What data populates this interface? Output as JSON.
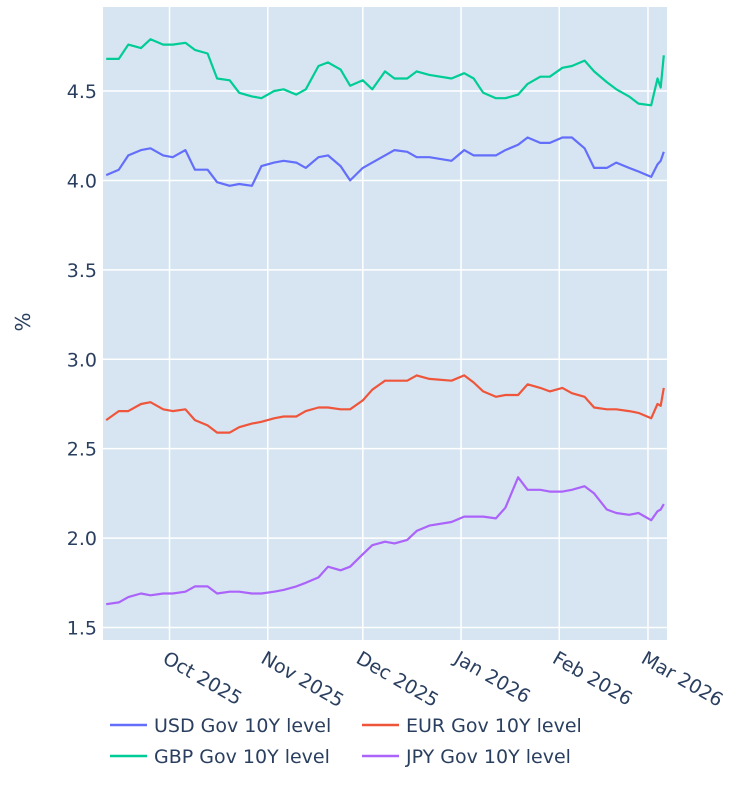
{
  "chart_data": {
    "type": "line",
    "title": "",
    "xlabel": "",
    "ylabel": "%",
    "xlim": [
      "2025-09-10",
      "2026-03-07"
    ],
    "ylim": [
      1.43,
      4.97
    ],
    "grid": true,
    "legend_position": "bottom",
    "plot_bgcolor": "#d6e5f1",
    "x_ticks": [
      {
        "date": "2025-10-01",
        "label": "Oct 2025"
      },
      {
        "date": "2025-11-01",
        "label": "Nov 2025"
      },
      {
        "date": "2025-12-01",
        "label": "Dec 2025"
      },
      {
        "date": "2026-01-01",
        "label": "Jan 2026"
      },
      {
        "date": "2026-02-01",
        "label": "Feb 2026"
      },
      {
        "date": "2026-03-01",
        "label": "Mar 2026"
      }
    ],
    "y_ticks": [
      1.5,
      2.0,
      2.5,
      3.0,
      3.5,
      4.0,
      4.5
    ],
    "y_tick_labels": [
      "1.5",
      "2.0",
      "2.5",
      "3.0",
      "3.5",
      "4.0",
      "4.5"
    ],
    "x": [
      "2025-09-11",
      "2025-09-15",
      "2025-09-18",
      "2025-09-22",
      "2025-09-25",
      "2025-09-29",
      "2025-10-02",
      "2025-10-06",
      "2025-10-09",
      "2025-10-13",
      "2025-10-16",
      "2025-10-20",
      "2025-10-23",
      "2025-10-27",
      "2025-10-30",
      "2025-11-03",
      "2025-11-06",
      "2025-11-10",
      "2025-11-13",
      "2025-11-17",
      "2025-11-20",
      "2025-11-24",
      "2025-11-27",
      "2025-12-01",
      "2025-12-04",
      "2025-12-08",
      "2025-12-11",
      "2025-12-15",
      "2025-12-18",
      "2025-12-22",
      "2025-12-29",
      "2026-01-02",
      "2026-01-05",
      "2026-01-08",
      "2026-01-12",
      "2026-01-15",
      "2026-01-19",
      "2026-01-22",
      "2026-01-26",
      "2026-01-29",
      "2026-02-02",
      "2026-02-05",
      "2026-02-09",
      "2026-02-12",
      "2026-02-16",
      "2026-02-19",
      "2026-02-23",
      "2026-02-26",
      "2026-03-02",
      "2026-03-04",
      "2026-03-05",
      "2026-03-06"
    ],
    "series": [
      {
        "name": "USD Gov 10Y level",
        "color": "#636efa",
        "values": [
          4.03,
          4.06,
          4.14,
          4.17,
          4.18,
          4.14,
          4.13,
          4.17,
          4.06,
          4.06,
          3.99,
          3.97,
          3.98,
          3.97,
          4.08,
          4.1,
          4.11,
          4.1,
          4.07,
          4.13,
          4.14,
          4.08,
          4.0,
          4.07,
          4.1,
          4.14,
          4.17,
          4.16,
          4.13,
          4.13,
          4.11,
          4.17,
          4.14,
          4.14,
          4.14,
          4.17,
          4.2,
          4.24,
          4.21,
          4.21,
          4.24,
          4.24,
          4.18,
          4.07,
          4.07,
          4.1,
          4.07,
          4.05,
          4.02,
          4.09,
          4.11,
          4.16
        ]
      },
      {
        "name": "EUR Gov 10Y level",
        "color": "#ef553b",
        "values": [
          2.66,
          2.71,
          2.71,
          2.75,
          2.76,
          2.72,
          2.71,
          2.72,
          2.66,
          2.63,
          2.59,
          2.59,
          2.62,
          2.64,
          2.65,
          2.67,
          2.68,
          2.68,
          2.71,
          2.73,
          2.73,
          2.72,
          2.72,
          2.77,
          2.83,
          2.88,
          2.88,
          2.88,
          2.91,
          2.89,
          2.88,
          2.91,
          2.87,
          2.82,
          2.79,
          2.8,
          2.8,
          2.86,
          2.84,
          2.82,
          2.84,
          2.81,
          2.79,
          2.73,
          2.72,
          2.72,
          2.71,
          2.7,
          2.67,
          2.75,
          2.74,
          2.84
        ]
      },
      {
        "name": "GBP Gov 10Y level",
        "color": "#00cc96",
        "values": [
          4.68,
          4.68,
          4.76,
          4.74,
          4.79,
          4.76,
          4.76,
          4.77,
          4.73,
          4.71,
          4.57,
          4.56,
          4.49,
          4.47,
          4.46,
          4.5,
          4.51,
          4.48,
          4.51,
          4.64,
          4.66,
          4.62,
          4.53,
          4.56,
          4.51,
          4.61,
          4.57,
          4.57,
          4.61,
          4.59,
          4.57,
          4.6,
          4.57,
          4.49,
          4.46,
          4.46,
          4.48,
          4.54,
          4.58,
          4.58,
          4.63,
          4.64,
          4.67,
          4.61,
          4.55,
          4.51,
          4.47,
          4.43,
          4.42,
          4.57,
          4.52,
          4.7
        ]
      },
      {
        "name": "JPY Gov 10Y level",
        "color": "#ab63fa",
        "values": [
          1.63,
          1.64,
          1.67,
          1.69,
          1.68,
          1.69,
          1.69,
          1.7,
          1.73,
          1.73,
          1.69,
          1.7,
          1.7,
          1.69,
          1.69,
          1.7,
          1.71,
          1.73,
          1.75,
          1.78,
          1.84,
          1.82,
          1.84,
          1.91,
          1.96,
          1.98,
          1.97,
          1.99,
          2.04,
          2.07,
          2.09,
          2.12,
          2.12,
          2.12,
          2.11,
          2.17,
          2.34,
          2.27,
          2.27,
          2.26,
          2.26,
          2.27,
          2.29,
          2.25,
          2.16,
          2.14,
          2.13,
          2.14,
          2.1,
          2.15,
          2.16,
          2.19
        ]
      }
    ]
  }
}
